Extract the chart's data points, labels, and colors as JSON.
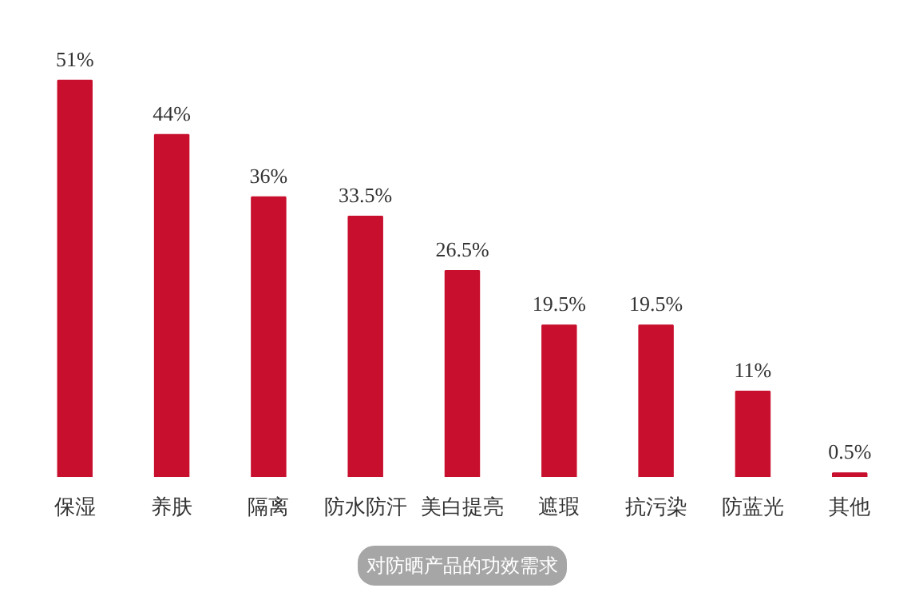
{
  "chart_data": {
    "type": "bar",
    "title": "对防晒产品的功效需求",
    "categories": [
      "保湿",
      "养肤",
      "隔离",
      "防水防汗",
      "美白提亮",
      "遮瑕",
      "抗污染",
      "防蓝光",
      "其他"
    ],
    "values": [
      51,
      44,
      36,
      33.5,
      26.5,
      19.5,
      19.5,
      11,
      0.5
    ],
    "value_labels": [
      "51%",
      "44%",
      "36%",
      "33.5%",
      "26.5%",
      "19.5%",
      "19.5%",
      "11%",
      "0.5%"
    ],
    "color": "#c8102e",
    "grid": false
  }
}
